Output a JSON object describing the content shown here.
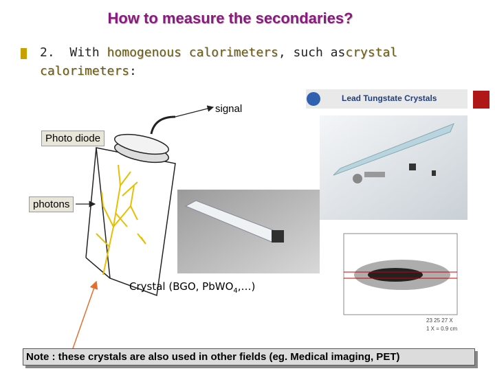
{
  "title": "How to measure the secondaries?",
  "bullet": {
    "number": "2.",
    "lead": "With",
    "term1": "homogenous calorimeters",
    "middle": ", such as",
    "term2a": "crystal",
    "term2b": "calorimeters",
    "end": ":"
  },
  "labels": {
    "signal": "signal",
    "photo_diode": "Photo diode",
    "photons": "photons",
    "crystal": "Crystal (BGO, PbWO",
    "crystal_sub": "4",
    "crystal_end": ",…)"
  },
  "banner": "Lead Tungstate Crystals",
  "plot": {
    "axis": "23  25  27 X",
    "scale": "1 X",
    "scale_end": " = 0.9 cm"
  },
  "note": "Note : these crystals are also used in other fields (eg. Medical imaging, PET)"
}
